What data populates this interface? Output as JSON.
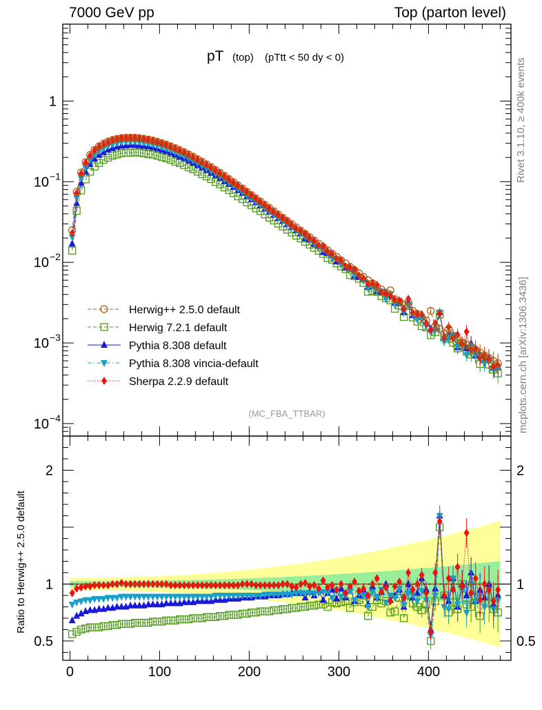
{
  "header": {
    "left": "7000 GeV pp",
    "right": "Top (parton level)"
  },
  "side_labels": {
    "rivet": "Rivet 3.1.10, ≥ 400k events",
    "mcplots": "mcplots.cern.ch [arXiv:1306.3436]"
  },
  "chart_data": {
    "type": "line",
    "title": {
      "main": "pT",
      "sub1": "(top)",
      "sub2": "(pTtt < 50 dy < 0)"
    },
    "analysis_tag": "(MC_FBA_TTBAR)",
    "xlim": [
      -8,
      492
    ],
    "xticks": [
      0,
      100,
      200,
      300,
      400
    ],
    "main": {
      "yscale": "log",
      "ylim": [
        7e-05,
        9
      ],
      "yticks": [
        {
          "value": 1,
          "base": "1",
          "exp": ""
        },
        {
          "value": 0.1,
          "base": "10",
          "exp": "−1"
        },
        {
          "value": 0.01,
          "base": "10",
          "exp": "−2"
        },
        {
          "value": 0.001,
          "base": "10",
          "exp": "−3"
        },
        {
          "value": 0.0001,
          "base": "10",
          "exp": "−4"
        }
      ]
    },
    "ratio": {
      "ylabel": "Ratio to Herwig++ 2.5.0 default",
      "ylim": [
        0.33,
        2.3
      ],
      "yticks": [
        {
          "value": 0.5,
          "label": "0.5"
        },
        {
          "value": 1,
          "label": "1"
        },
        {
          "value": 2,
          "label": "2"
        }
      ],
      "reference_line": 1
    },
    "legend": {
      "position": "lower-left",
      "entries": [
        {
          "label": "Herwig++ 2.5.0 default",
          "color": "#b15a12",
          "marker": "circle-open",
          "dash": "dashed"
        },
        {
          "label": "Herwig 7.2.1 default",
          "color": "#4d9a1a",
          "marker": "square-open",
          "dash": "dashed"
        },
        {
          "label": "Pythia 8.308 default",
          "color": "#1a1ad6",
          "marker": "triangle-up",
          "dash": "solid"
        },
        {
          "label": "Pythia 8.308 vincia-default",
          "color": "#1aa0c8",
          "marker": "triangle-down",
          "dash": "dashdot"
        },
        {
          "label": "Sherpa 2.2.9 default",
          "color": "#ee1111",
          "marker": "diamond",
          "dash": "dotted"
        }
      ]
    },
    "x": [
      2.5,
      7.5,
      12.5,
      17.5,
      22.5,
      27.5,
      32.5,
      37.5,
      42.5,
      47.5,
      52.5,
      57.5,
      62.5,
      67.5,
      72.5,
      77.5,
      82.5,
      87.5,
      92.5,
      97.5,
      102.5,
      107.5,
      112.5,
      117.5,
      122.5,
      127.5,
      132.5,
      137.5,
      142.5,
      147.5,
      152.5,
      157.5,
      162.5,
      167.5,
      172.5,
      177.5,
      182.5,
      187.5,
      192.5,
      197.5,
      202.5,
      207.5,
      212.5,
      217.5,
      222.5,
      227.5,
      232.5,
      237.5,
      242.5,
      247.5,
      252.5,
      257.5,
      262.5,
      267.5,
      272.5,
      277.5,
      282.5,
      287.5,
      292.5,
      297.5,
      302.5,
      307.5,
      312.5,
      317.5,
      322.5,
      327.5,
      332.5,
      337.5,
      342.5,
      347.5,
      352.5,
      357.5,
      362.5,
      367.5,
      372.5,
      377.5,
      382.5,
      387.5,
      392.5,
      397.5,
      402.5,
      407.5,
      412.5,
      417.5,
      422.5,
      427.5,
      432.5,
      437.5,
      442.5,
      447.5,
      452.5,
      457.5,
      462.5,
      467.5,
      472.5,
      477.5
    ],
    "reference_values": [
      0.025,
      0.075,
      0.13,
      0.175,
      0.215,
      0.248,
      0.275,
      0.297,
      0.315,
      0.329,
      0.34,
      0.347,
      0.351,
      0.352,
      0.351,
      0.347,
      0.341,
      0.333,
      0.324,
      0.313,
      0.301,
      0.288,
      0.275,
      0.261,
      0.247,
      0.233,
      0.218,
      0.204,
      0.19,
      0.177,
      0.164,
      0.152,
      0.14,
      0.129,
      0.118,
      0.108,
      0.0988,
      0.0902,
      0.0823,
      0.075,
      0.0684,
      0.0623,
      0.0568,
      0.0518,
      0.0472,
      0.043,
      0.0392,
      0.0357,
      0.0326,
      0.0297,
      0.0271,
      0.0247,
      0.0225,
      0.0205,
      0.0187,
      0.017,
      0.0155,
      0.0141,
      0.0128,
      0.0117,
      0.0106,
      0.0097,
      0.0088,
      0.008,
      0.0073,
      0.0066,
      0.006,
      0.0055,
      0.005,
      0.0046,
      0.0042,
      0.0045,
      0.0035,
      0.0033,
      0.003,
      0.0032,
      0.0025,
      0.0023,
      0.0021,
      0.0019,
      0.0025,
      0.0016,
      0.0015,
      0.0013,
      0.0015,
      0.0012,
      0.0011,
      0.001,
      0.00095,
      0.0009,
      0.00082,
      0.00076,
      0.0007,
      0.00065,
      0.0006,
      0.00056
    ],
    "series": [
      {
        "name": "Herwig++ 2.5.0 default",
        "ratio": [
          1,
          1,
          1,
          1,
          1,
          1,
          1,
          1,
          1,
          1,
          1,
          1,
          1,
          1,
          1,
          1,
          1,
          1,
          1,
          1,
          1,
          1,
          1,
          1,
          1,
          1,
          1,
          1,
          1,
          1,
          1,
          1,
          1,
          1,
          1,
          1,
          1,
          1,
          1,
          1,
          1,
          1,
          1,
          1,
          1,
          1,
          1,
          1,
          1,
          1,
          1,
          1,
          1,
          1,
          1,
          1,
          1,
          1,
          1,
          1,
          1,
          1,
          1,
          1,
          1,
          1,
          1,
          1,
          1,
          1,
          1,
          1,
          1,
          1,
          1,
          1,
          1,
          1,
          1,
          1,
          1,
          1,
          1,
          1,
          1,
          1,
          1,
          1,
          1,
          1,
          1,
          1,
          1,
          1,
          1,
          1
        ]
      },
      {
        "name": "Herwig 7.2.1 default",
        "ratio": [
          0.56,
          0.58,
          0.6,
          0.61,
          0.62,
          0.62,
          0.62,
          0.63,
          0.63,
          0.64,
          0.64,
          0.65,
          0.65,
          0.65,
          0.66,
          0.66,
          0.66,
          0.66,
          0.67,
          0.67,
          0.67,
          0.68,
          0.68,
          0.68,
          0.69,
          0.69,
          0.69,
          0.7,
          0.7,
          0.7,
          0.71,
          0.71,
          0.71,
          0.72,
          0.72,
          0.73,
          0.73,
          0.73,
          0.74,
          0.74,
          0.75,
          0.75,
          0.76,
          0.76,
          0.76,
          0.77,
          0.77,
          0.78,
          0.78,
          0.79,
          0.79,
          0.8,
          0.8,
          0.81,
          0.81,
          0.82,
          0.82,
          0.8,
          0.84,
          0.83,
          0.84,
          0.85,
          0.79,
          0.84,
          0.86,
          0.84,
          0.72,
          0.8,
          0.86,
          0.83,
          0.85,
          0.75,
          0.76,
          0.88,
          0.7,
          0.9,
          0.83,
          0.8,
          0.77,
          0.82,
          0.5,
          0.85,
          1.5,
          0.9,
          0.75,
          0.84,
          0.78,
          1.0,
          0.82,
          0.8,
          0.88,
          0.72,
          0.9,
          0.83,
          0.78,
          0.75
        ]
      },
      {
        "name": "Pythia 8.308 default",
        "ratio": [
          0.68,
          0.72,
          0.74,
          0.76,
          0.77,
          0.77,
          0.78,
          0.78,
          0.79,
          0.79,
          0.8,
          0.8,
          0.8,
          0.81,
          0.81,
          0.81,
          0.81,
          0.82,
          0.82,
          0.82,
          0.82,
          0.83,
          0.83,
          0.83,
          0.83,
          0.84,
          0.84,
          0.84,
          0.85,
          0.85,
          0.85,
          0.85,
          0.86,
          0.86,
          0.86,
          0.87,
          0.87,
          0.87,
          0.88,
          0.88,
          0.88,
          0.89,
          0.89,
          0.89,
          0.9,
          0.9,
          0.9,
          0.91,
          0.91,
          0.92,
          0.92,
          0.92,
          0.88,
          0.93,
          0.9,
          0.94,
          0.86,
          0.92,
          0.95,
          0.87,
          0.96,
          0.88,
          0.97,
          0.85,
          0.9,
          0.95,
          0.82,
          0.98,
          0.88,
          0.93,
          1.0,
          0.86,
          0.9,
          0.95,
          0.8,
          1.0,
          0.88,
          0.92,
          1.05,
          0.95,
          0.6,
          0.96,
          1.6,
          0.9,
          0.85,
          1.05,
          0.8,
          1.0,
          0.9,
          1.1,
          0.85,
          0.95,
          0.88,
          1.0,
          0.82,
          0.9
        ]
      },
      {
        "name": "Pythia 8.308 vincia-default",
        "ratio": [
          0.82,
          0.84,
          0.85,
          0.86,
          0.86,
          0.87,
          0.87,
          0.87,
          0.88,
          0.88,
          0.88,
          0.89,
          0.89,
          0.89,
          0.89,
          0.89,
          0.89,
          0.89,
          0.89,
          0.89,
          0.89,
          0.89,
          0.89,
          0.89,
          0.89,
          0.89,
          0.89,
          0.89,
          0.89,
          0.89,
          0.89,
          0.89,
          0.9,
          0.9,
          0.9,
          0.9,
          0.9,
          0.9,
          0.9,
          0.9,
          0.9,
          0.9,
          0.9,
          0.91,
          0.91,
          0.91,
          0.91,
          0.91,
          0.91,
          0.91,
          0.92,
          0.92,
          0.92,
          0.92,
          0.92,
          0.92,
          0.93,
          0.93,
          0.88,
          0.94,
          0.89,
          0.9,
          0.94,
          0.86,
          0.92,
          0.9,
          0.8,
          0.93,
          0.88,
          0.95,
          0.84,
          0.9,
          0.88,
          0.96,
          0.82,
          0.92,
          0.9,
          0.85,
          0.94,
          0.86,
          0.55,
          0.9,
          1.6,
          0.8,
          0.78,
          1.05,
          0.82,
          0.94,
          0.75,
          1.0,
          0.85,
          0.9,
          0.8,
          0.95,
          0.78,
          0.86
        ]
      },
      {
        "name": "Sherpa 2.2.9 default",
        "ratio": [
          0.92,
          0.96,
          0.97,
          0.98,
          0.98,
          0.99,
          0.99,
          0.99,
          0.99,
          1.0,
          1.0,
          1.01,
          1.0,
          1.0,
          1.0,
          1.0,
          1.0,
          1.0,
          1.0,
          1.0,
          1.0,
          1.0,
          0.99,
          0.99,
          0.99,
          0.99,
          0.99,
          0.99,
          0.99,
          0.99,
          0.99,
          0.99,
          0.99,
          0.99,
          0.99,
          0.99,
          0.99,
          0.99,
          1.0,
          1.0,
          1.0,
          0.99,
          0.99,
          0.99,
          0.99,
          0.99,
          0.99,
          1.0,
          1.0,
          0.98,
          0.97,
          1.0,
          1.01,
          0.98,
          0.99,
          0.96,
          1.03,
          0.97,
          0.99,
          0.95,
          1.0,
          0.92,
          0.98,
          1.02,
          0.94,
          0.96,
          0.9,
          1.0,
          1.05,
          0.93,
          0.97,
          0.85,
          0.98,
          1.02,
          0.88,
          1.1,
          0.95,
          1.0,
          1.08,
          0.92,
          0.58,
          1.1,
          1.55,
          0.9,
          1.05,
          0.95,
          1.15,
          0.98,
          1.45,
          0.92,
          1.05,
          0.86,
          1.0,
          0.95,
          0.85,
          0.95
        ]
      }
    ],
    "uncertainty_bands": {
      "green_half_width_start": 0.025,
      "green_half_width_end": 0.2,
      "yellow_half_width_start": 0.055,
      "yellow_half_width_end": 0.55
    }
  }
}
